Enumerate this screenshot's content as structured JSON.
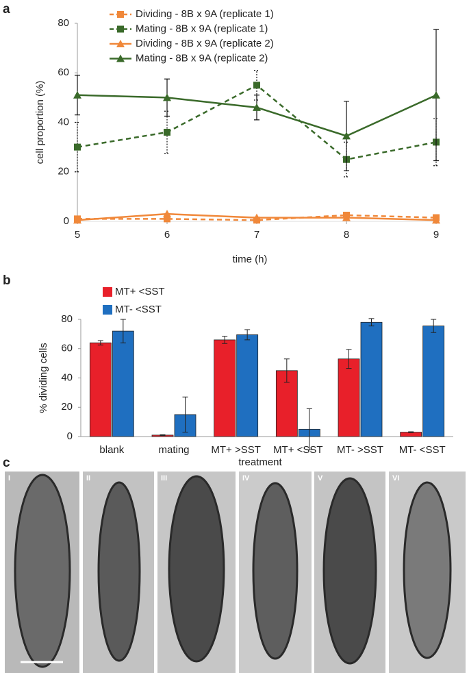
{
  "panel_labels": [
    "a",
    "b",
    "c"
  ],
  "micrograph_labels": [
    "I",
    "II",
    "III",
    "IV",
    "V",
    "VI"
  ],
  "chart_data": [
    {
      "type": "line",
      "x_label": "time (h)",
      "y_label": "cell proportion (%)",
      "x": [
        5,
        6,
        7,
        8,
        9
      ],
      "xlim": [
        5,
        9
      ],
      "xticks": [
        5,
        6,
        7,
        8,
        9
      ],
      "ylim": [
        0,
        80
      ],
      "yticks": [
        0,
        20,
        40,
        60,
        80
      ],
      "series": [
        {
          "name": "Dividing - 8B x 9A (replicate 1)",
          "color": "#f0883a",
          "dash": true,
          "marker": "square",
          "values": [
            1,
            1,
            0.5,
            2.5,
            1.5
          ]
        },
        {
          "name": "Mating - 8B x 9A (replicate 1)",
          "color": "#3a6a2a",
          "dash": true,
          "marker": "square",
          "values": [
            30,
            36,
            55,
            25,
            32
          ],
          "errors": [
            10,
            8.5,
            6,
            7,
            9.5
          ]
        },
        {
          "name": "Dividing - 8B x 9A (replicate 2)",
          "color": "#f0883a",
          "dash": false,
          "marker": "triangle",
          "values": [
            0.5,
            3,
            1.5,
            1.5,
            0.5
          ]
        },
        {
          "name": "Mating - 8B x 9A (replicate 2)",
          "color": "#3a6a2a",
          "dash": false,
          "marker": "triangle",
          "values": [
            51,
            50,
            46,
            34.5,
            51
          ],
          "errors": [
            8,
            7.5,
            5,
            14,
            26.5
          ]
        }
      ]
    },
    {
      "type": "bar",
      "x_label": "treatment",
      "y_label": "% dividing cells",
      "categories": [
        "blank",
        "mating",
        "MT+ >SST",
        "MT+ <SST",
        "MT- >SST",
        "MT- <SST"
      ],
      "ylim": [
        0,
        80
      ],
      "yticks": [
        0,
        20,
        40,
        60,
        80
      ],
      "series": [
        {
          "name": "MT+ <SST",
          "color": "#e8202a",
          "values": [
            64,
            1,
            66,
            45,
            53,
            3
          ],
          "errors": [
            1.5,
            0.3,
            2.5,
            8,
            6.5,
            0.3
          ]
        },
        {
          "name": "MT- <SST",
          "color": "#1f6fc0",
          "values": [
            72,
            15,
            69.5,
            5,
            78,
            75.5
          ],
          "errors": [
            8,
            12,
            3.5,
            14,
            2.5,
            4.5
          ]
        }
      ]
    }
  ]
}
